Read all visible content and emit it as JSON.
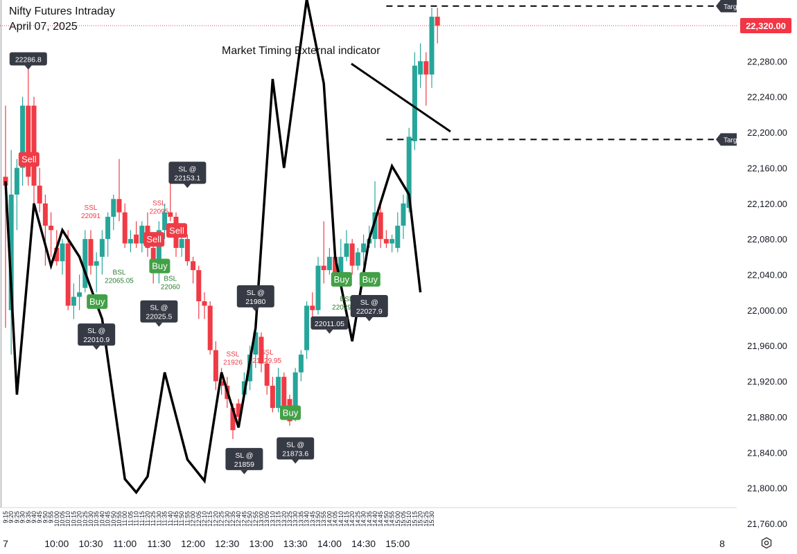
{
  "header": {
    "title": "Nifty Futures Intraday",
    "date": "April 07, 2025"
  },
  "annotation": "Market Timing External indicator",
  "colors": {
    "up": "#26a69a",
    "down": "#ef3b45",
    "buy": "#43a047",
    "sell": "#ef3b45",
    "price_tag": "#f23645",
    "dark_tag": "#363a45",
    "indicator": "#000000"
  },
  "chart_data": {
    "type": "candlestick",
    "title": "Nifty Futures Intraday",
    "interval_minutes": 5,
    "ylim": [
      21740,
      22340
    ],
    "y_ticks": [
      "21,760.00",
      "21,800.00",
      "21,840.00",
      "21,880.00",
      "21,920.00",
      "21,960.00",
      "22,000.00",
      "22,040.00",
      "22,080.00",
      "22,120.00",
      "22,160.00",
      "22,200.00",
      "22,240.00",
      "22,280.00",
      "22,320.00"
    ],
    "x_major_labels": [
      "7",
      "10:00",
      "10:30",
      "11:00",
      "11:30",
      "12:00",
      "12:30",
      "13:00",
      "13:30",
      "14:00",
      "14:30",
      "15:00",
      "8"
    ],
    "x_minor_labels": [
      "9:15",
      "9:20",
      "9:25",
      "9:30",
      "9:35",
      "9:40",
      "9:45",
      "9:50",
      "9:55",
      "10:00",
      "10:05",
      "10:10",
      "10:15",
      "10:20",
      "10:25",
      "10:30",
      "10:35",
      "10:40",
      "10:45",
      "10:50",
      "10:55",
      "11:00",
      "11:05",
      "11:10",
      "11:15",
      "11:20",
      "11:25",
      "11:30",
      "11:35",
      "11:40",
      "11:45",
      "11:50",
      "11:55",
      "12:00",
      "12:05",
      "12:10",
      "12:15",
      "12:20",
      "12:25",
      "12:30",
      "12:35",
      "12:40",
      "12:45",
      "12:50",
      "12:55",
      "13:00",
      "13:05",
      "13:10",
      "13:15",
      "13:20",
      "13:25",
      "13:30",
      "13:35",
      "13:40",
      "13:45",
      "13:50",
      "13:55",
      "14:00",
      "14:05",
      "14:10",
      "14:15",
      "14:20",
      "14:25",
      "14:30",
      "14:35",
      "14:40",
      "14:45",
      "14:50",
      "14:55",
      "15:00",
      "15:05",
      "15:10",
      "15:15",
      "15:20",
      "15:25",
      "15:30"
    ],
    "last_price_label": "22,320.00",
    "last_price": 22320,
    "candles": [
      {
        "t": "9:15",
        "o": 22150,
        "h": 22230,
        "l": 21980,
        "c": 22140
      },
      {
        "t": "9:20",
        "o": 22000,
        "h": 22180,
        "l": 21950,
        "c": 22130
      },
      {
        "t": "9:25",
        "o": 22130,
        "h": 22170,
        "l": 22090,
        "c": 22160
      },
      {
        "t": "9:30",
        "o": 22160,
        "h": 22240,
        "l": 22140,
        "c": 22230
      },
      {
        "t": "9:35",
        "o": 22230,
        "h": 22285,
        "l": 22140,
        "c": 22150
      },
      {
        "t": "9:40",
        "o": 22230,
        "h": 22240,
        "l": 22120,
        "c": 22140
      },
      {
        "t": "9:45",
        "o": 22140,
        "h": 22160,
        "l": 22110,
        "c": 22120
      },
      {
        "t": "9:50",
        "o": 22120,
        "h": 22130,
        "l": 22050,
        "c": 22095
      },
      {
        "t": "9:55",
        "o": 22095,
        "h": 22110,
        "l": 22060,
        "c": 22090
      },
      {
        "t": "10:00",
        "o": 22070,
        "h": 22090,
        "l": 22050,
        "c": 22055
      },
      {
        "t": "10:05",
        "o": 22055,
        "h": 22080,
        "l": 22040,
        "c": 22075
      },
      {
        "t": "10:10",
        "o": 22075,
        "h": 22090,
        "l": 22000,
        "c": 22005
      },
      {
        "t": "10:15",
        "o": 22005,
        "h": 22030,
        "l": 21990,
        "c": 22015
      },
      {
        "t": "10:20",
        "o": 22015,
        "h": 22040,
        "l": 22000,
        "c": 22020
      },
      {
        "t": "10:25",
        "o": 22025,
        "h": 22090,
        "l": 22020,
        "c": 22080
      },
      {
        "t": "10:30",
        "o": 22080,
        "h": 22090,
        "l": 22040,
        "c": 22050
      },
      {
        "t": "10:35",
        "o": 22050,
        "h": 22065,
        "l": 22020,
        "c": 22055
      },
      {
        "t": "10:40",
        "o": 22060,
        "h": 22090,
        "l": 22040,
        "c": 22080
      },
      {
        "t": "10:45",
        "o": 22080,
        "h": 22110,
        "l": 22060,
        "c": 22105
      },
      {
        "t": "10:50",
        "o": 22105,
        "h": 22130,
        "l": 22090,
        "c": 22125
      },
      {
        "t": "10:55",
        "o": 22125,
        "h": 22170,
        "l": 22100,
        "c": 22110
      },
      {
        "t": "11:00",
        "o": 22110,
        "h": 22120,
        "l": 22070,
        "c": 22075
      },
      {
        "t": "11:05",
        "o": 22075,
        "h": 22090,
        "l": 22065,
        "c": 22080
      },
      {
        "t": "11:10",
        "o": 22085,
        "h": 22100,
        "l": 22070,
        "c": 22075
      },
      {
        "t": "11:15",
        "o": 22075,
        "h": 22100,
        "l": 22065,
        "c": 22095
      },
      {
        "t": "11:20",
        "o": 22095,
        "h": 22110,
        "l": 22060,
        "c": 22070
      },
      {
        "t": "11:25",
        "o": 22070,
        "h": 22080,
        "l": 22030,
        "c": 22045
      },
      {
        "t": "11:30",
        "o": 22045,
        "h": 22100,
        "l": 22030,
        "c": 22090
      },
      {
        "t": "11:35",
        "o": 22090,
        "h": 22120,
        "l": 22080,
        "c": 22110
      },
      {
        "t": "11:40",
        "o": 22110,
        "h": 22150,
        "l": 22100,
        "c": 22105
      },
      {
        "t": "11:45",
        "o": 22105,
        "h": 22110,
        "l": 22060,
        "c": 22070
      },
      {
        "t": "11:50",
        "o": 22070,
        "h": 22085,
        "l": 22060,
        "c": 22080
      },
      {
        "t": "11:55",
        "o": 22080,
        "h": 22085,
        "l": 22050,
        "c": 22055
      },
      {
        "t": "12:00",
        "o": 22055,
        "h": 22060,
        "l": 22030,
        "c": 22045
      },
      {
        "t": "12:05",
        "o": 22045,
        "h": 22050,
        "l": 21990,
        "c": 22010
      },
      {
        "t": "12:10",
        "o": 22010,
        "h": 22020,
        "l": 21990,
        "c": 22005
      },
      {
        "t": "12:15",
        "o": 22005,
        "h": 22010,
        "l": 21950,
        "c": 21955
      },
      {
        "t": "12:20",
        "o": 21955,
        "h": 21965,
        "l": 21910,
        "c": 21920
      },
      {
        "t": "12:25",
        "o": 21920,
        "h": 21935,
        "l": 21905,
        "c": 21915
      },
      {
        "t": "12:30",
        "o": 21915,
        "h": 21925,
        "l": 21890,
        "c": 21900
      },
      {
        "t": "12:35",
        "o": 21890,
        "h": 21895,
        "l": 21855,
        "c": 21865
      },
      {
        "t": "12:40",
        "o": 21895,
        "h": 21900,
        "l": 21870,
        "c": 21880
      },
      {
        "t": "12:45",
        "o": 21905,
        "h": 21930,
        "l": 21900,
        "c": 21920
      },
      {
        "t": "12:50",
        "o": 21920,
        "h": 21960,
        "l": 21910,
        "c": 21950
      },
      {
        "t": "12:55",
        "o": 21950,
        "h": 21985,
        "l": 21935,
        "c": 21975
      },
      {
        "t": "13:00",
        "o": 21970,
        "h": 21975,
        "l": 21930,
        "c": 21940
      },
      {
        "t": "13:05",
        "o": 21940,
        "h": 21950,
        "l": 21905,
        "c": 21915
      },
      {
        "t": "13:10",
        "o": 21915,
        "h": 21925,
        "l": 21885,
        "c": 21890
      },
      {
        "t": "13:15",
        "o": 21890,
        "h": 21935,
        "l": 21885,
        "c": 21925
      },
      {
        "t": "13:20",
        "o": 21925,
        "h": 21930,
        "l": 21885,
        "c": 21890
      },
      {
        "t": "13:25",
        "o": 21900,
        "h": 21905,
        "l": 21870,
        "c": 21875
      },
      {
        "t": "13:30",
        "o": 21880,
        "h": 21935,
        "l": 21875,
        "c": 21930
      },
      {
        "t": "13:35",
        "o": 21930,
        "h": 21955,
        "l": 21920,
        "c": 21950
      },
      {
        "t": "13:40",
        "o": 21955,
        "h": 22010,
        "l": 21945,
        "c": 22005
      },
      {
        "t": "13:45",
        "o": 22005,
        "h": 22020,
        "l": 21990,
        "c": 22000
      },
      {
        "t": "13:50",
        "o": 22000,
        "h": 22060,
        "l": 21995,
        "c": 22050
      },
      {
        "t": "13:55",
        "o": 22050,
        "h": 22100,
        "l": 22030,
        "c": 22045
      },
      {
        "t": "14:00",
        "o": 22045,
        "h": 22070,
        "l": 22040,
        "c": 22060
      },
      {
        "t": "14:05",
        "o": 22060,
        "h": 22070,
        "l": 22035,
        "c": 22040
      },
      {
        "t": "14:10",
        "o": 22040,
        "h": 22080,
        "l": 22030,
        "c": 22060
      },
      {
        "t": "14:15",
        "o": 22060,
        "h": 22090,
        "l": 22055,
        "c": 22075
      },
      {
        "t": "14:20",
        "o": 22075,
        "h": 22080,
        "l": 22040,
        "c": 22050
      },
      {
        "t": "14:25",
        "o": 22050,
        "h": 22070,
        "l": 22045,
        "c": 22065
      },
      {
        "t": "14:30",
        "o": 22065,
        "h": 22085,
        "l": 22050,
        "c": 22075
      },
      {
        "t": "14:35",
        "o": 22075,
        "h": 22095,
        "l": 22070,
        "c": 22080
      },
      {
        "t": "14:40",
        "o": 22080,
        "h": 22145,
        "l": 22070,
        "c": 22110
      },
      {
        "t": "14:45",
        "o": 22110,
        "h": 22120,
        "l": 22070,
        "c": 22080
      },
      {
        "t": "14:50",
        "o": 22080,
        "h": 22090,
        "l": 22070,
        "c": 22075
      },
      {
        "t": "14:55",
        "o": 22075,
        "h": 22085,
        "l": 22065,
        "c": 22080
      },
      {
        "t": "15:00",
        "o": 22070,
        "h": 22110,
        "l": 22065,
        "c": 22095
      },
      {
        "t": "15:05",
        "o": 22095,
        "h": 22130,
        "l": 22080,
        "c": 22120
      },
      {
        "t": "15:10",
        "o": 22115,
        "h": 22205,
        "l": 22110,
        "c": 22195
      },
      {
        "t": "15:15",
        "o": 22190,
        "h": 22290,
        "l": 22180,
        "c": 22275
      },
      {
        "t": "15:20",
        "o": 22265,
        "h": 22300,
        "l": 22250,
        "c": 22280
      },
      {
        "t": "15:25",
        "o": 22280,
        "h": 22290,
        "l": 22230,
        "c": 22265
      },
      {
        "t": "15:30",
        "o": 22265,
        "h": 22340,
        "l": 22250,
        "c": 22330
      },
      {
        "t": "15:35",
        "o": 22330,
        "h": 22340,
        "l": 22300,
        "c": 22320
      }
    ],
    "indicator_line": {
      "points": [
        {
          "t": "9:15",
          "v": 22145
        },
        {
          "t": "9:25",
          "v": 21905
        },
        {
          "t": "9:40",
          "v": 22120
        },
        {
          "t": "9:55",
          "v": 22050
        },
        {
          "t": "10:05",
          "v": 22090
        },
        {
          "t": "10:20",
          "v": 22060
        },
        {
          "t": "10:40",
          "v": 21990
        },
        {
          "t": "11:00",
          "v": 21810
        },
        {
          "t": "11:10",
          "v": 21795
        },
        {
          "t": "11:20",
          "v": 21813
        },
        {
          "t": "11:35",
          "v": 21930
        },
        {
          "t": "11:55",
          "v": 21832
        },
        {
          "t": "12:10",
          "v": 21808
        },
        {
          "t": "12:25",
          "v": 21930
        },
        {
          "t": "12:40",
          "v": 21868
        },
        {
          "t": "12:55",
          "v": 21980
        },
        {
          "t": "13:10",
          "v": 22260
        },
        {
          "t": "13:20",
          "v": 22160
        },
        {
          "t": "13:40",
          "v": 22350
        },
        {
          "t": "13:55",
          "v": 22255
        },
        {
          "t": "14:05",
          "v": 22060
        },
        {
          "t": "14:20",
          "v": 21965
        },
        {
          "t": "14:35",
          "v": 22080
        },
        {
          "t": "14:55",
          "v": 22162
        },
        {
          "t": "15:10",
          "v": 22130
        },
        {
          "t": "15:20",
          "v": 22020
        }
      ]
    },
    "signals": [
      {
        "type": "sell",
        "label": "Sell",
        "t": "9:35",
        "v": 22170
      },
      {
        "type": "buy",
        "label": "Buy",
        "t": "10:35",
        "v": 22010
      },
      {
        "type": "buy",
        "label": "Buy",
        "t": "11:30",
        "v": 22050
      },
      {
        "type": "sell",
        "label": "Sell",
        "t": "11:25",
        "v": 22080
      },
      {
        "type": "sell",
        "label": "Sell",
        "t": "11:45",
        "v": 22090
      },
      {
        "type": "buy",
        "label": "Buy",
        "t": "13:25",
        "v": 21885
      },
      {
        "type": "buy",
        "label": "Buy",
        "t": "14:10",
        "v": 22035
      },
      {
        "type": "buy",
        "label": "Buy",
        "t": "14:35",
        "v": 22035
      }
    ],
    "level_labels": [
      {
        "kind": "ssl",
        "lines": [
          "SSL",
          "22091"
        ],
        "t": "10:30",
        "v": 22113
      },
      {
        "kind": "bsl",
        "lines": [
          "BSL",
          "22065.05"
        ],
        "t": "10:55",
        "v": 22040
      },
      {
        "kind": "ssl",
        "lines": [
          "SSL",
          "22095"
        ],
        "t": "11:30",
        "v": 22118
      },
      {
        "kind": "bsl",
        "lines": [
          "BSL",
          "22060"
        ],
        "t": "11:40",
        "v": 22033
      },
      {
        "kind": "ssl",
        "lines": [
          "SSL",
          "21926"
        ],
        "t": "12:35",
        "v": 21948
      },
      {
        "kind": "ssl",
        "lines": [
          "SSL",
          "21929.95"
        ],
        "t": "13:05",
        "v": 21950
      },
      {
        "kind": "bsl",
        "lines": [
          "BSL",
          "22029.05"
        ],
        "t": "14:15",
        "v": 22010
      }
    ],
    "sl_tags": [
      {
        "lines": [
          "22286.8"
        ],
        "t": "9:35",
        "v": 22290
      },
      {
        "lines": [
          "SL @",
          "22153.1"
        ],
        "t": "11:55",
        "v": 22167
      },
      {
        "lines": [
          "SL @",
          "22025.5"
        ],
        "t": "11:30",
        "v": 22011
      },
      {
        "lines": [
          "SL @",
          "22010.9"
        ],
        "t": "10:35",
        "v": 21985
      },
      {
        "lines": [
          "SL @",
          "21859"
        ],
        "t": "12:45",
        "v": 21845
      },
      {
        "lines": [
          "SL @",
          "21873.6"
        ],
        "t": "13:30",
        "v": 21857
      },
      {
        "lines": [
          "22011.05"
        ],
        "t": "14:00",
        "v": 21993
      },
      {
        "lines": [
          "SL @",
          "22027.9"
        ],
        "t": "14:35",
        "v": 22017
      },
      {
        "lines": [
          "SL @",
          "21980"
        ],
        "t": "12:55",
        "v": 22028
      }
    ],
    "target_lines": [
      {
        "label": "Targ",
        "v": 22342,
        "t_from": "14:50"
      },
      {
        "label": "Targ",
        "v": 22192,
        "t_from": "14:50"
      }
    ]
  }
}
